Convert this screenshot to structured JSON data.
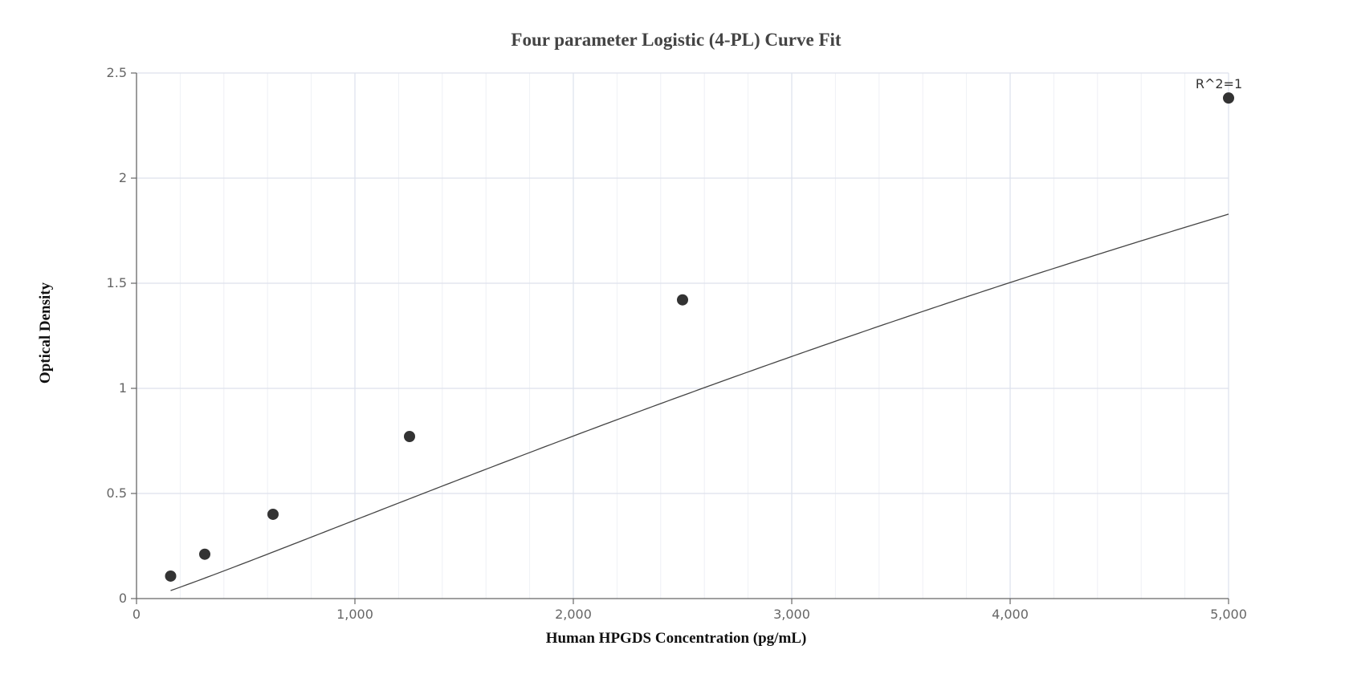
{
  "chart_data": {
    "type": "scatter",
    "title": "Four parameter Logistic (4-PL) Curve Fit",
    "xlabel": "Human HPGDS Concentration (pg/mL)",
    "ylabel": "Optical Density",
    "xlim": [
      0,
      5000
    ],
    "ylim": [
      0,
      2.5
    ],
    "x_ticks": [
      0,
      1000,
      2000,
      3000,
      4000,
      5000
    ],
    "x_tick_labels": [
      "0",
      "1,000",
      "2,000",
      "3,000",
      "4,000",
      "5,000"
    ],
    "y_ticks": [
      0,
      0.5,
      1,
      1.5,
      2,
      2.5
    ],
    "y_tick_labels": [
      "0",
      "0.5",
      "1",
      "1.5",
      "2",
      "2.5"
    ],
    "grid": true,
    "series": [
      {
        "x": [
          156.25,
          312.5,
          625,
          1250,
          2500,
          5000
        ],
        "y": [
          0.107,
          0.211,
          0.401,
          0.771,
          1.421,
          2.381
        ]
      }
    ],
    "fit": {
      "model": "4PL",
      "A": -0.0145,
      "B": 1.1,
      "C": 15000,
      "D": 8.0,
      "line_color": "#444444"
    },
    "annotations": [
      {
        "text": "R^2=1",
        "x": 5000,
        "y": 2.381
      }
    ],
    "colors": {
      "points": "#333333",
      "grid": "#dde1ec",
      "axis": "#666666"
    }
  }
}
